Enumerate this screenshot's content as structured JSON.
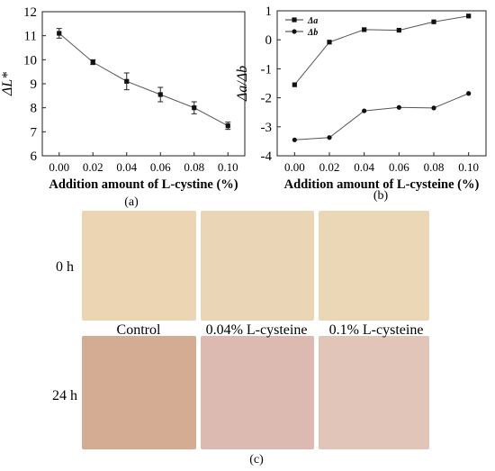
{
  "chart_data": [
    {
      "type": "line",
      "panel": "(a)",
      "xlabel": "Addition amount of L-cystine (%)",
      "ylabel": "ΔL*",
      "x": [
        0.0,
        0.02,
        0.04,
        0.06,
        0.08,
        0.1
      ],
      "x_tick_labels": [
        "0.00",
        "0.02",
        "0.04",
        "0.06",
        "0.08",
        "0.10"
      ],
      "xlim": [
        -0.01,
        0.11
      ],
      "ylim": [
        6,
        12
      ],
      "y_ticks": [
        6,
        7,
        8,
        9,
        10,
        11,
        12
      ],
      "series": [
        {
          "values": [
            11.1,
            9.9,
            9.1,
            8.55,
            8.0,
            7.25
          ],
          "errors": [
            0.2,
            0.1,
            0.35,
            0.3,
            0.25,
            0.15
          ],
          "marker": "square"
        }
      ]
    },
    {
      "type": "line",
      "panel": "(b)",
      "xlabel": "Addition amount of L-cysteine (%)",
      "ylabel": "Δa/Δb",
      "x": [
        0.0,
        0.02,
        0.04,
        0.06,
        0.08,
        0.1
      ],
      "x_tick_labels": [
        "0.00",
        "0.02",
        "0.04",
        "0.06",
        "0.08",
        "0.10"
      ],
      "xlim": [
        -0.01,
        0.11
      ],
      "ylim": [
        -4,
        1
      ],
      "y_ticks": [
        -4,
        -3,
        -2,
        -1,
        0,
        1
      ],
      "legend_position": "top-left",
      "series": [
        {
          "name": "Δa",
          "values": [
            -1.55,
            -0.08,
            0.35,
            0.33,
            0.62,
            0.82
          ],
          "marker": "square"
        },
        {
          "name": "Δb",
          "values": [
            -3.45,
            -3.37,
            -2.45,
            -2.33,
            -2.35,
            -1.85
          ],
          "marker": "circle"
        }
      ]
    }
  ],
  "photos": {
    "panel_label": "(c)",
    "row_labels": [
      "0 h",
      "24 h"
    ],
    "column_labels": [
      "Control",
      "0.04% L-cysteine",
      "0.1% L-cysteine"
    ],
    "swatch_colors": [
      [
        "#ecd5b2",
        "#ead5b6",
        "#ebd7b6"
      ],
      [
        "#d4ab93",
        "#ddbab1",
        "#e1c5b9"
      ]
    ]
  }
}
